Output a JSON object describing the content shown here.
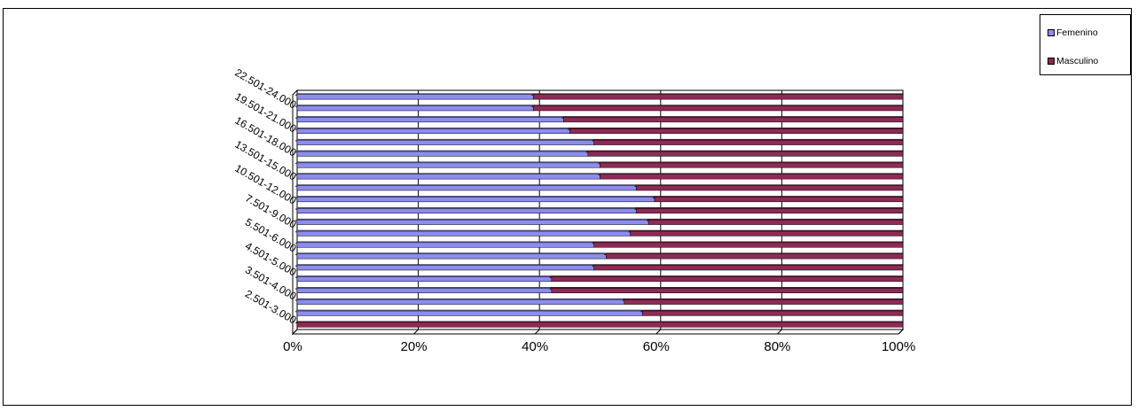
{
  "chart_data": {
    "type": "bar",
    "orientation": "horizontal",
    "stacked": "percent",
    "title": "",
    "xlabel": "",
    "ylabel": "",
    "xlim": [
      0,
      100
    ],
    "x_ticks": [
      "0%",
      "20%",
      "40%",
      "60%",
      "80%",
      "100%"
    ],
    "grid": true,
    "legend_position": "top-right",
    "category_labels": [
      "2.501-3.000",
      "3.501-4.000",
      "4.501-5.000",
      "5.501-6.000",
      "7.501-9.000",
      "10.501-12.000",
      "13.501-15.000",
      "16.501-18.000",
      "19.501-21.000",
      "22.501-24.000"
    ],
    "categories": [
      "c1",
      "c2",
      "c3",
      "c4",
      "c5",
      "c6",
      "c7",
      "c8",
      "c9",
      "c10",
      "c11",
      "c12",
      "c13",
      "c14",
      "c15",
      "c16",
      "c17",
      "c18",
      "c19",
      "c20",
      "c21"
    ],
    "series": [
      {
        "name": "Femenino",
        "color": "#8C8CF0",
        "values": [
          0,
          57,
          54,
          42,
          42,
          49,
          51,
          49,
          55,
          58,
          56,
          59,
          56,
          50,
          50,
          48,
          49,
          45,
          44,
          39,
          39
        ]
      },
      {
        "name": "Masculino",
        "color": "#8E2A55",
        "values": [
          100,
          43,
          46,
          58,
          58,
          51,
          49,
          51,
          45,
          42,
          44,
          41,
          44,
          50,
          50,
          52,
          51,
          55,
          56,
          61,
          61
        ]
      }
    ]
  }
}
